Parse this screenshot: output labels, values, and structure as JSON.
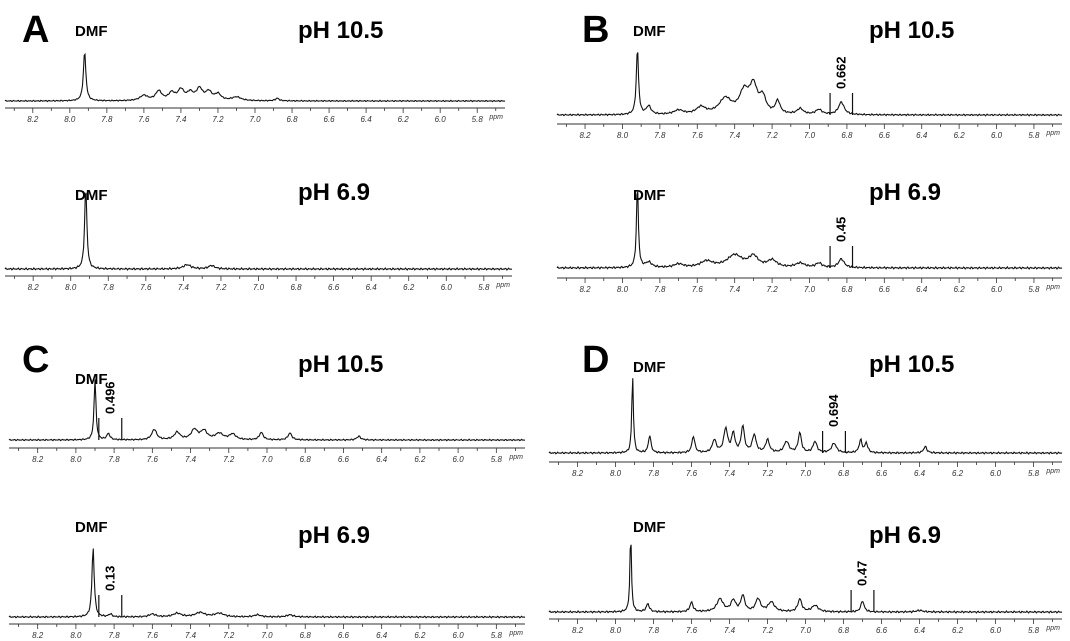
{
  "figure": {
    "panels": [
      {
        "letter": "A",
        "spectra": [
          {
            "ph_label": "pH 10.5",
            "solvent_label": "DMF",
            "integral_label": "",
            "peaks": [
              [
                7.92,
                0.95,
                0.008
              ],
              [
                7.6,
                0.1,
                0.025
              ],
              [
                7.52,
                0.18,
                0.02
              ],
              [
                7.45,
                0.14,
                0.02
              ],
              [
                7.4,
                0.2,
                0.02
              ],
              [
                7.35,
                0.14,
                0.02
              ],
              [
                7.3,
                0.22,
                0.02
              ],
              [
                7.25,
                0.16,
                0.02
              ],
              [
                7.2,
                0.12,
                0.02
              ],
              [
                7.1,
                0.07,
                0.03
              ],
              [
                6.88,
                0.05,
                0.012
              ]
            ]
          },
          {
            "ph_label": "pH 6.9",
            "solvent_label": "DMF",
            "integral_label": "",
            "peaks": [
              [
                7.92,
                0.98,
                0.007
              ],
              [
                7.38,
                0.05,
                0.025
              ],
              [
                7.25,
                0.04,
                0.02
              ]
            ]
          }
        ]
      },
      {
        "letter": "B",
        "spectra": [
          {
            "ph_label": "pH 10.5",
            "solvent_label": "DMF",
            "integral_label": "0.662",
            "peaks": [
              [
                7.92,
                0.95,
                0.007
              ],
              [
                7.86,
                0.12,
                0.015
              ],
              [
                7.7,
                0.06,
                0.03
              ],
              [
                7.58,
                0.1,
                0.03
              ],
              [
                7.45,
                0.22,
                0.04
              ],
              [
                7.35,
                0.3,
                0.03
              ],
              [
                7.3,
                0.38,
                0.025
              ],
              [
                7.25,
                0.22,
                0.02
              ],
              [
                7.17,
                0.18,
                0.015
              ],
              [
                7.05,
                0.08,
                0.02
              ],
              [
                6.95,
                0.07,
                0.02
              ],
              [
                6.83,
                0.18,
                0.018
              ]
            ]
          },
          {
            "ph_label": "pH 6.9",
            "solvent_label": "DMF",
            "integral_label": "0.45",
            "peaks": [
              [
                7.92,
                0.95,
                0.006
              ],
              [
                7.86,
                0.06,
                0.02
              ],
              [
                7.7,
                0.04,
                0.03
              ],
              [
                7.55,
                0.07,
                0.04
              ],
              [
                7.4,
                0.14,
                0.05
              ],
              [
                7.3,
                0.12,
                0.03
              ],
              [
                7.2,
                0.08,
                0.03
              ],
              [
                7.05,
                0.05,
                0.03
              ],
              [
                6.95,
                0.05,
                0.02
              ],
              [
                6.83,
                0.1,
                0.018
              ]
            ]
          }
        ]
      },
      {
        "letter": "C",
        "spectra": [
          {
            "ph_label": "pH 10.5",
            "solvent_label": "DMF",
            "integral_label": "0.496",
            "peaks": [
              [
                7.9,
                0.97,
                0.006
              ],
              [
                7.83,
                0.1,
                0.01
              ],
              [
                7.59,
                0.17,
                0.015
              ],
              [
                7.47,
                0.12,
                0.018
              ],
              [
                7.38,
                0.16,
                0.02
              ],
              [
                7.33,
                0.14,
                0.02
              ],
              [
                7.25,
                0.1,
                0.025
              ],
              [
                7.18,
                0.09,
                0.02
              ],
              [
                7.03,
                0.12,
                0.012
              ],
              [
                6.88,
                0.11,
                0.012
              ],
              [
                6.52,
                0.06,
                0.012
              ]
            ]
          },
          {
            "ph_label": "pH 6.9",
            "solvent_label": "DMF",
            "integral_label": "0.13",
            "peaks": [
              [
                7.91,
                0.97,
                0.007
              ],
              [
                7.82,
                0.04,
                0.01
              ],
              [
                7.6,
                0.04,
                0.02
              ],
              [
                7.47,
                0.05,
                0.025
              ],
              [
                7.35,
                0.06,
                0.03
              ],
              [
                7.25,
                0.05,
                0.03
              ],
              [
                7.05,
                0.03,
                0.02
              ],
              [
                6.88,
                0.03,
                0.02
              ]
            ]
          }
        ]
      },
      {
        "letter": "D",
        "spectra": [
          {
            "ph_label": "pH 10.5",
            "solvent_label": "DMF",
            "integral_label": "0.694",
            "peaks": [
              [
                7.91,
                0.97,
                0.005
              ],
              [
                7.82,
                0.22,
                0.008
              ],
              [
                7.59,
                0.21,
                0.009
              ],
              [
                7.48,
                0.16,
                0.012
              ],
              [
                7.42,
                0.3,
                0.012
              ],
              [
                7.38,
                0.24,
                0.01
              ],
              [
                7.33,
                0.33,
                0.01
              ],
              [
                7.27,
                0.22,
                0.012
              ],
              [
                7.2,
                0.16,
                0.012
              ],
              [
                7.1,
                0.14,
                0.015
              ],
              [
                7.03,
                0.25,
                0.01
              ],
              [
                6.95,
                0.14,
                0.012
              ],
              [
                6.85,
                0.12,
                0.015
              ],
              [
                6.71,
                0.16,
                0.009
              ],
              [
                6.68,
                0.12,
                0.009
              ],
              [
                6.37,
                0.08,
                0.01
              ]
            ]
          },
          {
            "ph_label": "pH 6.9",
            "solvent_label": "DMF",
            "integral_label": "0.47",
            "peaks": [
              [
                7.92,
                0.97,
                0.005
              ],
              [
                7.83,
                0.1,
                0.01
              ],
              [
                7.6,
                0.12,
                0.01
              ],
              [
                7.45,
                0.16,
                0.02
              ],
              [
                7.38,
                0.14,
                0.015
              ],
              [
                7.33,
                0.2,
                0.012
              ],
              [
                7.25,
                0.16,
                0.015
              ],
              [
                7.18,
                0.12,
                0.02
              ],
              [
                7.03,
                0.16,
                0.012
              ],
              [
                6.95,
                0.08,
                0.02
              ],
              [
                6.7,
                0.14,
                0.01
              ],
              [
                6.4,
                0.02,
                0.02
              ]
            ]
          }
        ]
      }
    ]
  },
  "chart_data": {
    "type": "line",
    "x_unit": "ppm",
    "x_ticks": [
      "8.2",
      "8.0",
      "7.8",
      "7.6",
      "7.4",
      "7.2",
      "7.0",
      "6.8",
      "6.6",
      "6.4",
      "6.2",
      "6.0",
      "5.8"
    ],
    "x_range": [
      8.35,
      5.65
    ],
    "x_reversed": true,
    "grid": false
  }
}
